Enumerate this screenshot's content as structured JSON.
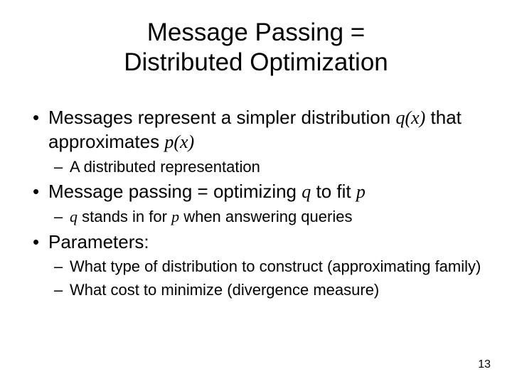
{
  "title_line1": "Message Passing =",
  "title_line2": "Distributed Optimization",
  "bullets": {
    "b1_prefix": "Messages represent a simpler distribution ",
    "b1_qx": "q(x)",
    "b1_mid": " that approximates ",
    "b1_px": "p(x)",
    "b1_sub1": "A distributed representation",
    "b2_prefix": "Message passing = optimizing ",
    "b2_q": "q",
    "b2_mid": " to fit ",
    "b2_p": "p",
    "b2_sub1_q": "q",
    "b2_sub1_mid": " stands in for ",
    "b2_sub1_p": "p",
    "b2_sub1_suffix": " when answering queries",
    "b3": "Parameters:",
    "b3_sub1": "What type of distribution to construct (approximating family)",
    "b3_sub2": "What cost to minimize (divergence measure)"
  },
  "page_number": "13",
  "colors": {
    "background": "#ffffff",
    "text": "#000000"
  },
  "fonts": {
    "title_size_pt": 35,
    "level1_size_pt": 26,
    "level2_size_pt": 22,
    "page_number_size_pt": 16
  }
}
